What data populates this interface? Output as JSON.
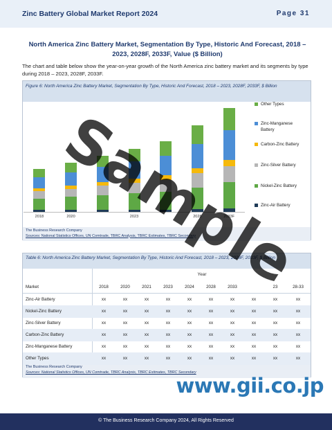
{
  "header": {
    "title": "Zinc Battery Global Market Report 2024",
    "page": "Page 31"
  },
  "section": {
    "title": "North America Zinc Battery Market, Segmentation By Type, Historic And Forecast, 2018 – 2023, 2028F, 2033F, Value ($ Billion)",
    "intro": "The chart and table below show the year-on-year growth of the North America zinc battery market and its segments by type during 2018 – 2023, 2028F, 2033F."
  },
  "figure": {
    "caption": "Figure 6: North America Zinc Battery Market, Segmentation By Type, Historic And Forecast, 2018 – 2023, 2028F, 2033F, $ Billion",
    "source_org": "The Business Research Company",
    "sources": "Sources: National Statistics Offices, UN Comtrade, TBRC Analysis, TBRC Estimates, TBRC Secondary"
  },
  "chart_data": {
    "type": "bar",
    "stacked": true,
    "title": "",
    "xlabel": "",
    "ylabel": "",
    "categories": [
      "2018",
      "2020",
      "",
      "2023",
      "",
      "2028",
      "2033F"
    ],
    "series": [
      {
        "name": "Zinc-Air Battery",
        "color": "#1f3b57",
        "values": [
          0.5,
          0.5,
          0.5,
          0.6,
          0.6,
          0.8,
          1
        ]
      },
      {
        "name": "Nickel-Zinc Battery",
        "color": "#5ea845",
        "values": [
          3,
          3.5,
          4,
          4.4,
          4.8,
          5.8,
          7
        ]
      },
      {
        "name": "Zinc-Silver Battery",
        "color": "#b6b6b6",
        "values": [
          2,
          2.2,
          2.5,
          2.8,
          3.2,
          3.8,
          4.3
        ]
      },
      {
        "name": "Carbon-Zinc Battery",
        "color": "#f5b90c",
        "values": [
          0.8,
          0.9,
          1,
          1.1,
          1.2,
          1.4,
          1.6
        ]
      },
      {
        "name": "Zinc-Manganese Battery",
        "color": "#4c8ed6",
        "values": [
          3,
          3.5,
          4,
          4.6,
          5.2,
          6.5,
          8
        ]
      },
      {
        "name": "Other Types",
        "color": "#6aae46",
        "values": [
          2.2,
          2.6,
          3,
          3.5,
          4,
          5,
          6
        ]
      }
    ],
    "legend_position": "right",
    "grid": false
  },
  "legend_order": [
    "Other Types",
    "Zinc-Manganese Battery",
    "Carbon-Zinc Battery",
    "Zinc-Silver Battery",
    "Nickel-Zinc Battery",
    "Zinc-Air Battery"
  ],
  "table": {
    "caption": "Table 6: North America Zinc Battery Market, Segmentation By Type, Historic And Forecast, 2018 – 2023, 2028F, 2033F, $ Billion",
    "group_header": "Year",
    "columns": [
      "Market",
      "2018",
      "2020",
      "2021",
      "2023",
      "2024",
      "2028",
      "2033",
      "",
      "23",
      "28-33"
    ],
    "rows": [
      {
        "name": "Zinc-Air Battery",
        "values": [
          "xx",
          "xx",
          "xx",
          "xx",
          "xx",
          "xx",
          "xx",
          "xx",
          "xx",
          "xx"
        ]
      },
      {
        "name": "Nickel-Zinc Battery",
        "values": [
          "xx",
          "xx",
          "xx",
          "xx",
          "xx",
          "xx",
          "xx",
          "xx",
          "xx",
          "xx"
        ]
      },
      {
        "name": "Zinc-Silver Battery",
        "values": [
          "xx",
          "xx",
          "xx",
          "xx",
          "xx",
          "xx",
          "xx",
          "xx",
          "xx",
          "xx"
        ]
      },
      {
        "name": "Carbon-Zinc Battery",
        "values": [
          "xx",
          "xx",
          "xx",
          "xx",
          "xx",
          "xx",
          "xx",
          "xx",
          "xx",
          "xx"
        ]
      },
      {
        "name": "Zinc-Manganese Battery",
        "values": [
          "xx",
          "xx",
          "xx",
          "xx",
          "xx",
          "xx",
          "xx",
          "xx",
          "xx",
          "xx"
        ]
      },
      {
        "name": "Other Types",
        "values": [
          "xx",
          "xx",
          "xx",
          "xx",
          "xx",
          "xx",
          "xx",
          "xx",
          "xx",
          "xx"
        ]
      }
    ],
    "source_org": "The Business Research Company",
    "sources": "Sources: National Statistics Offices, UN Comtrade, TBRC Analysis, TBRC Estimates, TBRC Secondary"
  },
  "watermark": "Sample",
  "site_mark": "www.gii.co.jp",
  "footer": {
    "text": "© The Business Research Company 2024, All Rights Reserved"
  }
}
